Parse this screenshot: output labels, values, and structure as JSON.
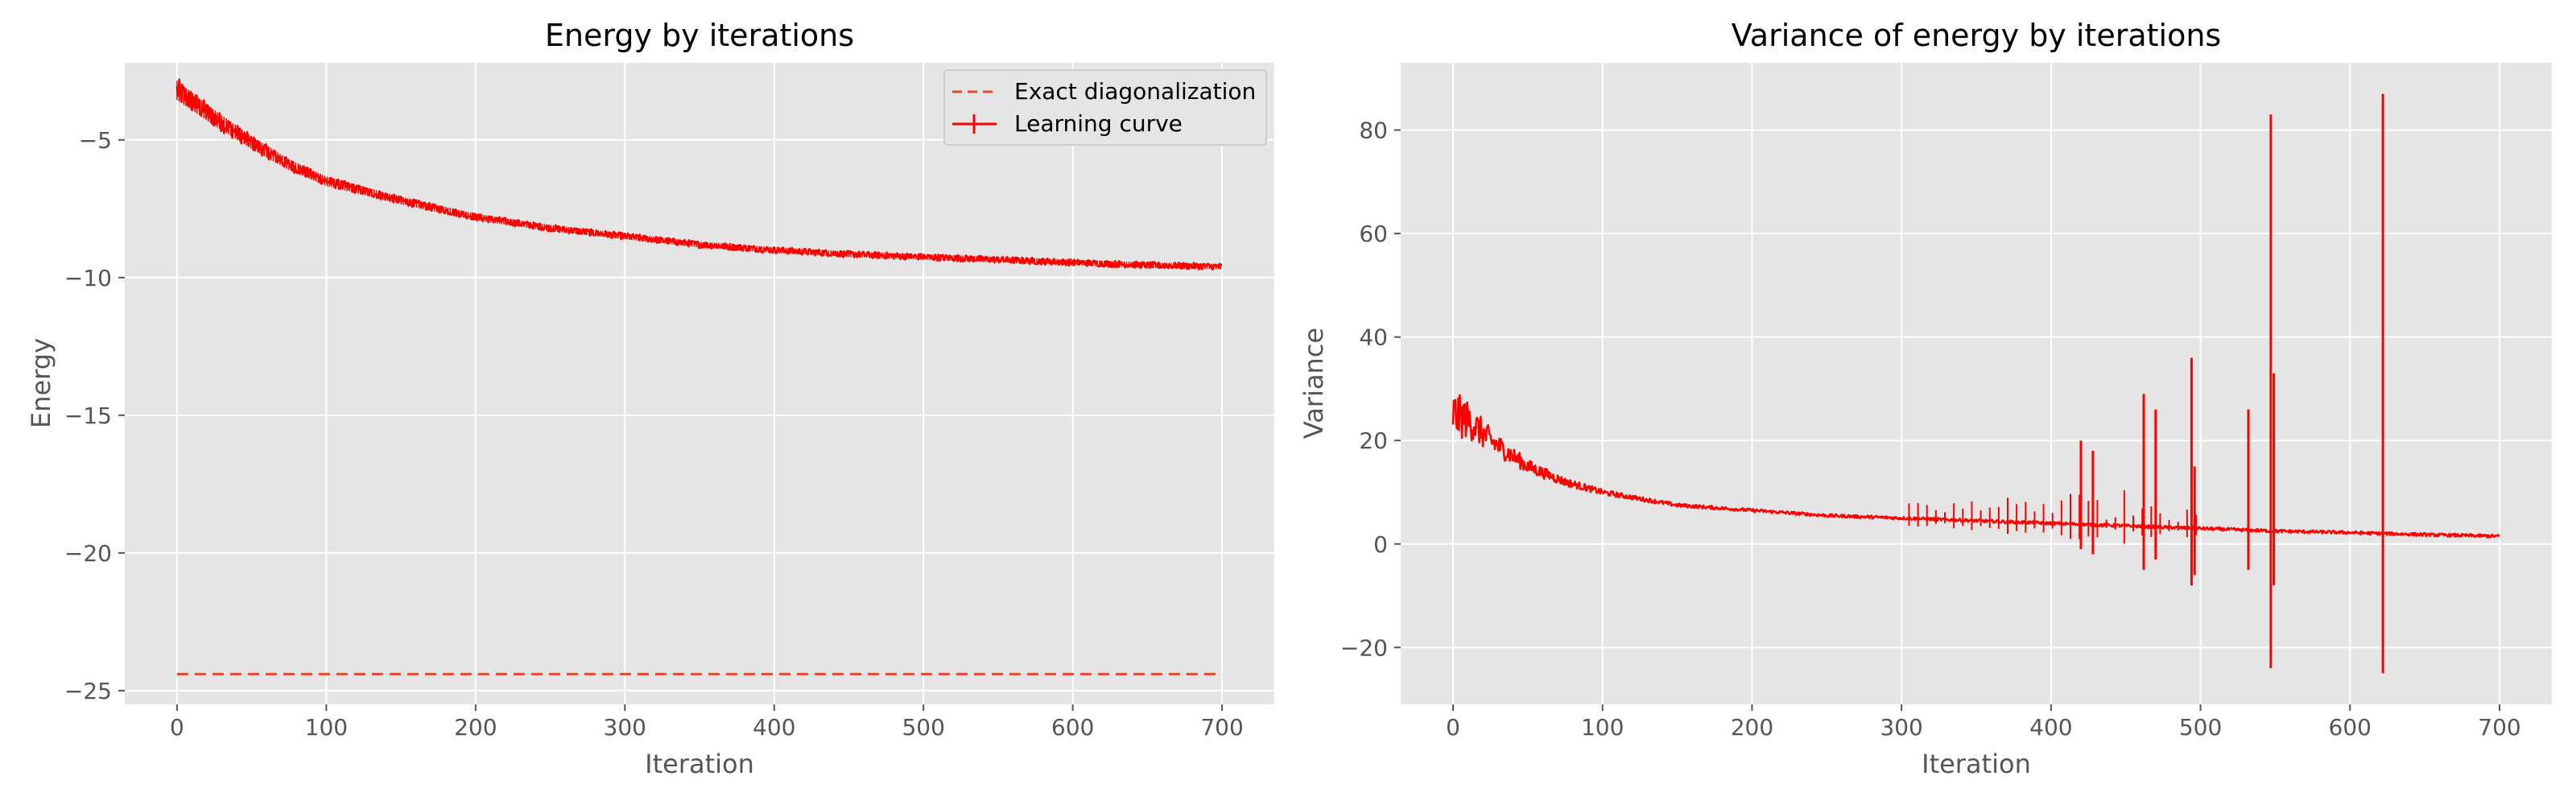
{
  "chart_data": [
    {
      "type": "line",
      "title": "Energy by iterations",
      "xlabel": "Iteration",
      "ylabel": "Energy",
      "xlim": [
        -35,
        735
      ],
      "ylim": [
        -25.5,
        -2.2
      ],
      "xticks": [
        0,
        100,
        200,
        300,
        400,
        500,
        600,
        700
      ],
      "xtick_labels": [
        "0",
        "100",
        "200",
        "300",
        "400",
        "500",
        "600",
        "700"
      ],
      "yticks": [
        -5,
        -10,
        -15,
        -20,
        -25
      ],
      "ytick_labels": [
        "−5",
        "−10",
        "−15",
        "−20",
        "−25"
      ],
      "grid": true,
      "legend_placement": "top-right",
      "series": [
        {
          "name": "Exact diagonalization",
          "style": "dashed",
          "color": "#E24A33",
          "x": [
            0,
            700
          ],
          "values": [
            -24.4,
            -24.4
          ]
        },
        {
          "name": "Learning curve",
          "style": "solid",
          "color": "#FF0000",
          "x": [
            0,
            10,
            25,
            50,
            75,
            100,
            150,
            200,
            250,
            300,
            350,
            400,
            450,
            500,
            550,
            600,
            650,
            700
          ],
          "values": [
            -3.2,
            -3.6,
            -4.2,
            -5.1,
            -5.9,
            -6.5,
            -7.2,
            -7.8,
            -8.2,
            -8.5,
            -8.8,
            -9.0,
            -9.15,
            -9.25,
            -9.35,
            -9.45,
            -9.55,
            -9.6
          ]
        }
      ]
    },
    {
      "type": "line",
      "title": "Variance of energy by iterations",
      "xlabel": "Iteration",
      "ylabel": "Variance",
      "xlim": [
        -35,
        735
      ],
      "ylim": [
        -31,
        93
      ],
      "xticks": [
        0,
        100,
        200,
        300,
        400,
        500,
        600,
        700
      ],
      "xtick_labels": [
        "0",
        "100",
        "200",
        "300",
        "400",
        "500",
        "600",
        "700"
      ],
      "yticks": [
        80,
        60,
        40,
        20,
        0,
        -20
      ],
      "ytick_labels": [
        "80",
        "60",
        "40",
        "20",
        "0",
        "−20"
      ],
      "grid": true,
      "series": [
        {
          "style": "solid",
          "color": "#FF0000",
          "x": [
            0,
            10,
            25,
            50,
            75,
            100,
            150,
            200,
            250,
            300,
            350,
            400,
            450,
            500,
            550,
            600,
            650,
            700
          ],
          "values": [
            25,
            24,
            20,
            15,
            12,
            10,
            7.5,
            6.5,
            5.5,
            5,
            4.5,
            4,
            3.5,
            3,
            2.5,
            2.2,
            1.8,
            1.5
          ],
          "spikes": [
            {
              "x": 420,
              "low": -1,
              "high": 20
            },
            {
              "x": 428,
              "low": -2,
              "high": 18
            },
            {
              "x": 462,
              "low": -5,
              "high": 29
            },
            {
              "x": 470,
              "low": -3,
              "high": 26
            },
            {
              "x": 494,
              "low": -8,
              "high": 36
            },
            {
              "x": 496,
              "low": -6,
              "high": 15
            },
            {
              "x": 532,
              "low": -5,
              "high": 26
            },
            {
              "x": 547,
              "low": -24,
              "high": 83
            },
            {
              "x": 549,
              "low": -8,
              "high": 33
            },
            {
              "x": 622,
              "low": -25,
              "high": 87
            }
          ]
        }
      ]
    }
  ]
}
